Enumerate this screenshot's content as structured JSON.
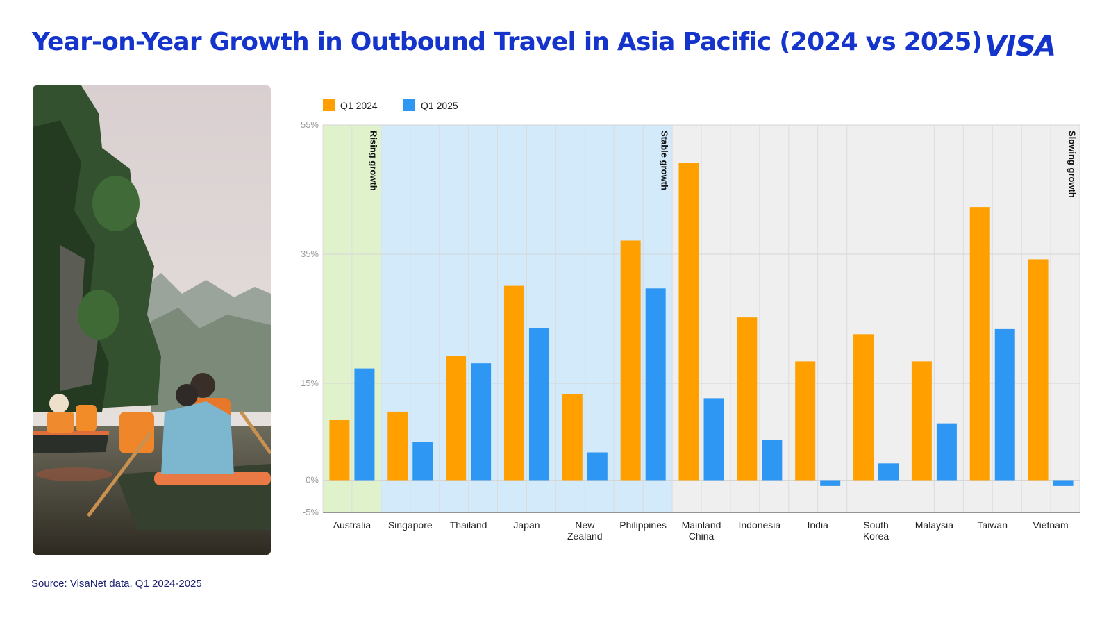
{
  "header": {
    "title": "Year-on-Year Growth in Outbound Travel in Asia Pacific (2024 vs 2025)",
    "logo_text": "VISA"
  },
  "footer": {
    "source": "Source: VisaNet data, Q1 2024-2025"
  },
  "colors": {
    "brand_blue": "#1434cb",
    "q1_2024": "#ff9f00",
    "q1_2025": "#2e96f3",
    "rising_bg": "#e0f2cc",
    "stable_bg": "#d2eafa",
    "slowing_bg": "#efefef"
  },
  "chart_data": {
    "type": "bar",
    "categories": [
      "Australia",
      "Singapore",
      "Thailand",
      "Japan",
      "New Zealand",
      "Philippines",
      "Mainland China",
      "Indonesia",
      "India",
      "South Korea",
      "Malaysia",
      "Taiwan",
      "Vietnam"
    ],
    "category_lines": [
      [
        "Australia"
      ],
      [
        "Singapore"
      ],
      [
        "Thailand"
      ],
      [
        "Japan"
      ],
      [
        "New",
        "Zealand"
      ],
      [
        "Philippines"
      ],
      [
        "Mainland",
        "China"
      ],
      [
        "Indonesia"
      ],
      [
        "India"
      ],
      [
        "South",
        "Korea"
      ],
      [
        "Malaysia"
      ],
      [
        "Taiwan"
      ],
      [
        "Vietnam"
      ]
    ],
    "series": [
      {
        "name": "Q1 2024",
        "color": "#ff9f00",
        "values": [
          9.3,
          10.6,
          19.3,
          30.1,
          13.3,
          37.1,
          49.1,
          25.2,
          18.4,
          22.6,
          18.4,
          42.3,
          34.2
        ]
      },
      {
        "name": "Q1 2025",
        "color": "#2e96f3",
        "values": [
          17.3,
          5.9,
          18.1,
          23.5,
          4.3,
          29.7,
          12.7,
          6.2,
          -0.9,
          2.6,
          8.8,
          23.4,
          -0.9
        ]
      }
    ],
    "ylim": [
      -5,
      55
    ],
    "yticks": [
      55,
      35,
      15,
      0,
      -5
    ],
    "ytick_labels": [
      "55%",
      "35%",
      "15%",
      "0%",
      "-5%"
    ],
    "zones": [
      {
        "label": "Rising growth",
        "start": 0,
        "end": 0,
        "color": "#e0f2cc"
      },
      {
        "label": "Stable growth",
        "start": 1,
        "end": 5,
        "color": "#d2eafa"
      },
      {
        "label": "Slowing growth",
        "start": 6,
        "end": 12,
        "color": "#efefef"
      }
    ],
    "grid": true,
    "legend_position": "top-left"
  }
}
